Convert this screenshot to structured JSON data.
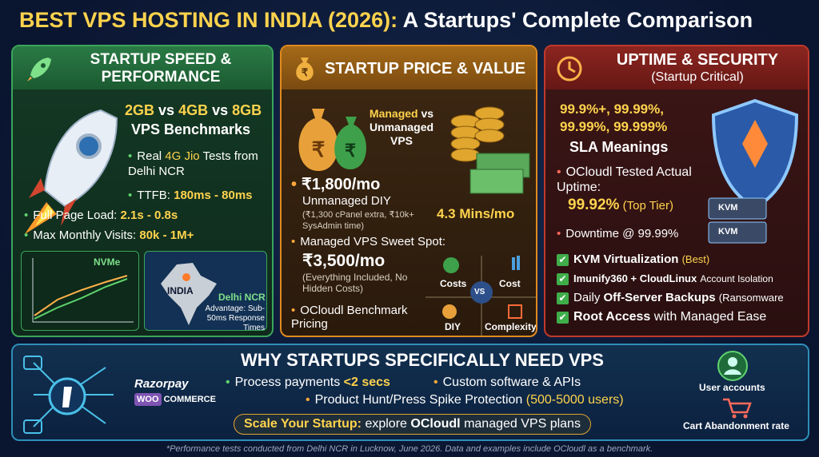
{
  "header": {
    "title_highlight": "BEST VPS HOSTING IN INDIA (2026):",
    "title_rest": "A Startups' Complete Comparison"
  },
  "speed": {
    "title": "STARTUP SPEED & PERFORMANCE",
    "bench": [
      "2GB",
      "vs",
      "4GB",
      "vs",
      "8GB"
    ],
    "bench_sub": "VPS Benchmarks",
    "tests": [
      "Real",
      "4G Jio",
      "Tests from Delhi NCR"
    ],
    "ttfb": [
      "TTFB:",
      "180ms - 80ms"
    ],
    "page_load": [
      "Full Page Load:",
      "2.1s - 0.8s"
    ],
    "visits": [
      "Max Monthly Visits:",
      "80k - 1M+"
    ],
    "chart_label": "NVMe",
    "map": {
      "country": "INDIA",
      "city": "Delhi NCR",
      "note": "Advantage: Sub-50ms Response Times"
    }
  },
  "price": {
    "title": "STARTUP PRICE & VALUE",
    "compare": [
      "Managed",
      "vs",
      "Unmanaged VPS"
    ],
    "unmanaged_price": "₹1,800/mo",
    "unmanaged_label": "Unmanaged DIY",
    "unmanaged_note": "(₹1,300 cPanel extra, ₹10k+ SysAdmin time)",
    "time": "4.3 Mins/mo",
    "managed_label": "Managed VPS Sweet Spot:",
    "managed_price": "₹3,500/mo",
    "managed_note": "(Everything Included, No Hidden Costs)",
    "benchmark": "OCloudl Benchmark Pricing",
    "quadrant": {
      "top_left": "Costs",
      "top_right": "Cost",
      "center": "VS",
      "bottom_left": "DIY",
      "bottom_right": "Complexity"
    }
  },
  "uptime": {
    "title": "UPTIME & SECURITY",
    "subtitle": "(Startup Critical)",
    "sla_values": "99.9%+, 99.99%, 99.99%, 99.999%",
    "sla_label": "SLA Meanings",
    "tested": "OCloudl Tested Actual Uptime:",
    "tested_value": "99.92%",
    "tested_note": "(Top Tier)",
    "downtime": "Downtime @ 99.99%",
    "server_labels": [
      "KVM",
      "KVM"
    ],
    "checklist": [
      [
        "KVM Virtualization",
        "(Best)"
      ],
      [
        "Imunify360 + CloudLinux",
        "Account Isolation"
      ],
      [
        "Daily",
        "Off-Server Backups",
        "(Ransomware"
      ],
      [
        "Root Access",
        "with Managed Ease"
      ]
    ]
  },
  "why": {
    "title": "WHY STARTUPS SPECIFICALLY NEED VPS",
    "payments": [
      "Process payments",
      "<2 secs"
    ],
    "custom": "Custom software & APIs",
    "spike": [
      "Product Hunt/Press Spike Protection",
      "(500-5000 users)"
    ],
    "cta": [
      "Scale Your Startup:",
      "explore",
      "OCloudl",
      "managed VPS plans"
    ],
    "brands": [
      "Razorpay",
      "WOO",
      "COMMERCE"
    ],
    "user_accounts": "User accounts",
    "cart": "Cart Abandonment rate"
  },
  "footer": "*Performance tests conducted from Delhi NCR in Lucknow, June 2026. Data and examples include OCloudl as a benchmark."
}
